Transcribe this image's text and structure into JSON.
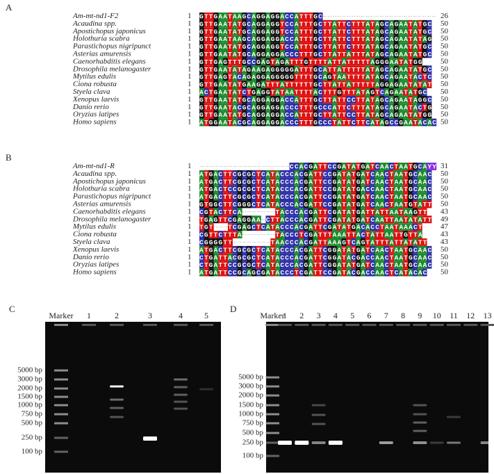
{
  "panel_a": {
    "label": "A",
    "rows": [
      {
        "name": "Am-mt-nd1-F2",
        "start": 1,
        "seq": "GTTGAATAAGCAGGAGGACCATTTGC------------------------",
        "end": 26
      },
      {
        "name": "Acaudina spp.",
        "start": 1,
        "seq": "GTTGAATATGCAGGAGGTCCATTTGCTTATTCTTTATAGCAGAATATGC",
        "end": 50
      },
      {
        "name": "Apostichopus japonicus",
        "start": 1,
        "seq": "GTTGAATATGCAGGAGGTCCATTTGCTTATTCTTTATAGCAGAATATGC",
        "end": 50
      },
      {
        "name": "Holothuria scabra",
        "start": 1,
        "seq": "GTTGAATAAGCAGGAGGACCATTTGCTTATTCTTTATAGCAGAATATAG",
        "end": 50
      },
      {
        "name": "Parastichopus nigripunct",
        "start": 1,
        "seq": "GTTGAATATGCAGGAGGTCCATTTGCTTATTCTTTATAGCAGAATATGC",
        "end": 50
      },
      {
        "name": "Asterias amurensis",
        "start": 1,
        "seq": "GTTGAATATGCAGGAGGACCCTTTGCTTATTATTTATAGCAGAATATGC",
        "end": 50
      },
      {
        "name": "Caenorhabditis elegans",
        "start": 1,
        "seq": "GTTGAGTTTGCCGAGTAGATTTGTTTTATTATTTTTAGGGAATATGG",
        "end": 50
      },
      {
        "name": "Drosophila melanogaster",
        "start": 1,
        "seq": "GTTGAATATAGAAGAGGGGGATTTGCATTATTTTTATAGCAGAATATGC",
        "end": 50
      },
      {
        "name": "Mytilus edulis",
        "start": 1,
        "seq": "GTTGAGTACAGAGGAGGGGGTTTTGCAGTAATTTTATAGCAGAATACTC",
        "end": 50
      },
      {
        "name": "Ciona robusta",
        "start": 1,
        "seq": "GTTGAATATGAAGATTTATTTTTTGCTTATTATTTTTAGGAGAATATAT",
        "end": 50
      },
      {
        "name": "Styela clava",
        "start": 1,
        "seq": "ACTGAATATCTGAGGTATAATTTTACTTTGTTTATAGTCAGAATATGC",
        "end": 50
      },
      {
        "name": "Xenopus laevis",
        "start": 1,
        "seq": "GTTGAATATGCAGGAGGACCATTTGCTTATTCCTTATAGCAGAATAGGC",
        "end": 50
      },
      {
        "name": "Danio rerio",
        "start": 1,
        "seq": "GTTGAATACGCAGGAGGACCCTTTGCCCATTCTTTATAGCAGAATACTG",
        "end": 50
      },
      {
        "name": "Oryzias latipes",
        "start": 1,
        "seq": "GTTGAATATGCAGGAGGACCATTTGCTTATTCCTTATAGCAGAATATGG",
        "end": 50
      },
      {
        "name": "Homo sapiens",
        "start": 1,
        "seq": "ATGGAATACGCAGGAGGACCCTTTGCCCTATTCTTCATAGCCGAATACAC",
        "end": 50
      }
    ]
  },
  "panel_b": {
    "label": "B",
    "rows": [
      {
        "name": "Am-mt-nd1-R",
        "start": 1,
        "seq": "-------------------CCACGATTCCGATATGATCAACTAATGCAYY",
        "end": 31
      },
      {
        "name": "Acaudina spp.",
        "start": 1,
        "seq": "ATGACTTCGCGCTCATACCCACGATTCCGATATGATCAACTAATGCAAC",
        "end": 50
      },
      {
        "name": "Apostichopus japonicus",
        "start": 1,
        "seq": "ATGACTTCGCGCTCATACCCACGATTCCGATATGATCAACTAATGCAAC",
        "end": 50
      },
      {
        "name": "Holothuria scabra",
        "start": 1,
        "seq": "ATGACTCCGCGCTCATACCCACGATTCCGATATGACCAACTAATGCAAC",
        "end": 50
      },
      {
        "name": "Parastichopus nigripunct",
        "start": 1,
        "seq": "ATGACTTCGCGCTCATACCCACGATTCCGATATGATCAACTAATGCAAC",
        "end": 50
      },
      {
        "name": "Asterias amurensis",
        "start": 1,
        "seq": "GTGGCTTCGGGCTCATACCCACGATTCCGATATGATCAACTAATGTATT",
        "end": 50
      },
      {
        "name": "Caenorhabditis elegans",
        "start": 1,
        "seq": "CGTACTTCA-------TACCCACGATTCGATATGATTATTAATAAGTT",
        "end": 43
      },
      {
        "name": "Drosophila melanogaster",
        "start": 1,
        "seq": "TGAGTTCGAGGAA-CTTACCCACGATTCGATATGATCAATTAATATATT",
        "end": 49
      },
      {
        "name": "Mytilus edulis",
        "start": 1,
        "seq": "TGT---TCGAGCTCATACCCACGATTCGATATGACACCTAATAAACT",
        "end": 47
      },
      {
        "name": "Ciona robusta",
        "start": 1,
        "seq": "CGTTCTTTA-------TACCCTCGATTTAAATTACTATTAATTGTTA",
        "end": 43
      },
      {
        "name": "Styela clava",
        "start": 1,
        "seq": "CGGGGTT--------TAACCCACGATTAAAGTCAGTATTTATTATATT",
        "end": 43
      },
      {
        "name": "Xenopus laevis",
        "start": 1,
        "seq": "ATGACTTCGCGCTCATACCCACGATTCGGATATGATCAACTAATGCAAC",
        "end": 50
      },
      {
        "name": "Danio rerio",
        "start": 1,
        "seq": "CTGATTACGCGCTCATACCCACGATTCGGATACGACCAACTAATGCAAC",
        "end": 50
      },
      {
        "name": "Oryzias latipes",
        "start": 1,
        "seq": "CTGATTCCGCGCTCATACCCACGATTCGGATATGATCAACTAATGCAAC",
        "end": 50
      },
      {
        "name": "Homo sapiens",
        "start": 1,
        "seq": "ATGATTCCGCAGCGATACCCTCGATTCCGATACGACCAACTCATACAC",
        "end": 50
      }
    ]
  },
  "panel_c": {
    "label": "C",
    "marker": "Marker",
    "lanes": [
      "1",
      "2",
      "3",
      "4",
      "5"
    ],
    "ladder": [
      "5000 bp",
      "3000 bp",
      "2000 bp",
      "1500 bp",
      "1000 bp",
      "750 bp",
      "500 bp",
      "250 bp",
      "100 bp"
    ]
  },
  "panel_d": {
    "label": "D",
    "marker": "Marker",
    "lanes": [
      "1",
      "2",
      "3",
      "4",
      "5",
      "6",
      "7",
      "8",
      "9",
      "10",
      "11",
      "12",
      "13"
    ],
    "ladder": [
      "5000 bp",
      "3000 bp",
      "2000 bp",
      "1500 bp",
      "1000 bp",
      "750 bp",
      "500 bp",
      "250 bp",
      "100 bp"
    ]
  }
}
